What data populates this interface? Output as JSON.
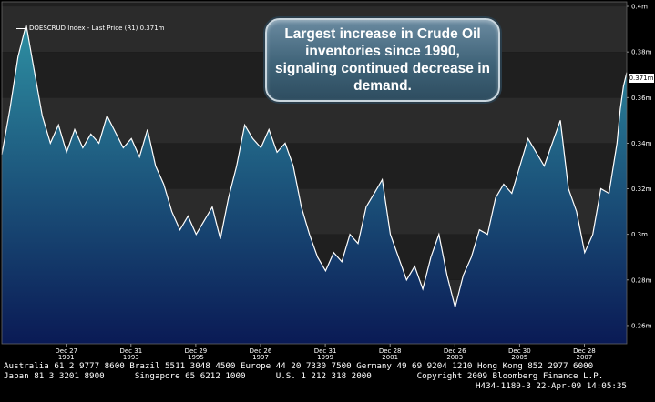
{
  "legend": {
    "label": "DOESCRUD Index - Last Price (R1)  0.371m"
  },
  "callout": {
    "text": "Largest increase in Crude Oil inventories since 1990, signaling continued decrease in demand."
  },
  "last_price_tag": "0.371m",
  "colors": {
    "line": "#ffffff",
    "fill_top": "#2e8fa2",
    "fill_bottom": "#0a1a55",
    "band_dark": "#1f1f1f",
    "band_light": "#2b2b2b"
  },
  "chart_data": {
    "type": "area",
    "title": "",
    "xlabel": "",
    "ylabel": "",
    "ylim": [
      0.252,
      0.402
    ],
    "y_ticks": [
      0.26,
      0.28,
      0.3,
      0.32,
      0.34,
      0.36,
      0.38,
      0.4
    ],
    "y_tick_labels": [
      "0.26m",
      "0.28m",
      "0.3m",
      "0.32m",
      "0.34m",
      "0.36m",
      "0.38m",
      "0.4m"
    ],
    "x_ticks": [
      {
        "label": "Dec 27",
        "year": "1991"
      },
      {
        "label": "Dec 31",
        "year": "1993"
      },
      {
        "label": "Dec 29",
        "year": "1995"
      },
      {
        "label": "Dec 26",
        "year": "1997"
      },
      {
        "label": "Dec 31",
        "year": "1999"
      },
      {
        "label": "Dec 28",
        "year": "2001"
      },
      {
        "label": "Dec 26",
        "year": "2003"
      },
      {
        "label": "Dec 30",
        "year": "2005"
      },
      {
        "label": "Dec 28",
        "year": "2007"
      }
    ],
    "x_range": [
      1990.0,
      2009.3
    ],
    "series": [
      {
        "name": "DOESCRUD Index - Last Price",
        "x": [
          1990.0,
          1990.25,
          1990.5,
          1990.75,
          1991.0,
          1991.25,
          1991.5,
          1991.75,
          1992.0,
          1992.25,
          1992.5,
          1992.75,
          1993.0,
          1993.25,
          1993.5,
          1993.75,
          1994.0,
          1994.25,
          1994.5,
          1994.75,
          1995.0,
          1995.25,
          1995.5,
          1995.75,
          1996.0,
          1996.25,
          1996.5,
          1996.75,
          1997.0,
          1997.25,
          1997.5,
          1997.75,
          1998.0,
          1998.25,
          1998.5,
          1998.75,
          1999.0,
          1999.25,
          1999.5,
          1999.75,
          2000.0,
          2000.25,
          2000.5,
          2000.75,
          2001.0,
          2001.25,
          2001.5,
          2001.75,
          2002.0,
          2002.25,
          2002.5,
          2002.75,
          2003.0,
          2003.25,
          2003.5,
          2003.75,
          2004.0,
          2004.25,
          2004.5,
          2004.75,
          2005.0,
          2005.25,
          2005.5,
          2005.75,
          2006.0,
          2006.25,
          2006.5,
          2006.75,
          2007.0,
          2007.25,
          2007.5,
          2007.75,
          2008.0,
          2008.25,
          2008.5,
          2008.75,
          2009.0,
          2009.1,
          2009.2,
          2009.3
        ],
        "values": [
          0.335,
          0.355,
          0.378,
          0.392,
          0.372,
          0.352,
          0.34,
          0.348,
          0.336,
          0.346,
          0.338,
          0.344,
          0.34,
          0.352,
          0.345,
          0.338,
          0.342,
          0.334,
          0.346,
          0.33,
          0.322,
          0.31,
          0.302,
          0.308,
          0.3,
          0.306,
          0.312,
          0.298,
          0.316,
          0.33,
          0.348,
          0.342,
          0.338,
          0.346,
          0.336,
          0.34,
          0.33,
          0.312,
          0.3,
          0.29,
          0.284,
          0.292,
          0.288,
          0.3,
          0.296,
          0.312,
          0.318,
          0.324,
          0.3,
          0.29,
          0.28,
          0.286,
          0.276,
          0.29,
          0.3,
          0.282,
          0.268,
          0.282,
          0.29,
          0.302,
          0.3,
          0.316,
          0.322,
          0.318,
          0.33,
          0.342,
          0.336,
          0.33,
          0.34,
          0.35,
          0.32,
          0.31,
          0.292,
          0.3,
          0.32,
          0.318,
          0.34,
          0.355,
          0.365,
          0.371
        ]
      }
    ],
    "legend": "top-left",
    "grid": false
  },
  "footer": {
    "line1": "Australia 61 2 9777 8600 Brazil 5511 3048 4500 Europe 44 20 7330 7500 Germany 49 69 9204 1210 Hong Kong 852 2977 6000",
    "line2": "Japan 81 3 3201 8900      Singapore 65 6212 1000      U.S. 1 212 318 2000         Copyright 2009 Bloomberg Finance L.P.",
    "line3": "H434-1180-3 22-Apr-09 14:05:35"
  }
}
